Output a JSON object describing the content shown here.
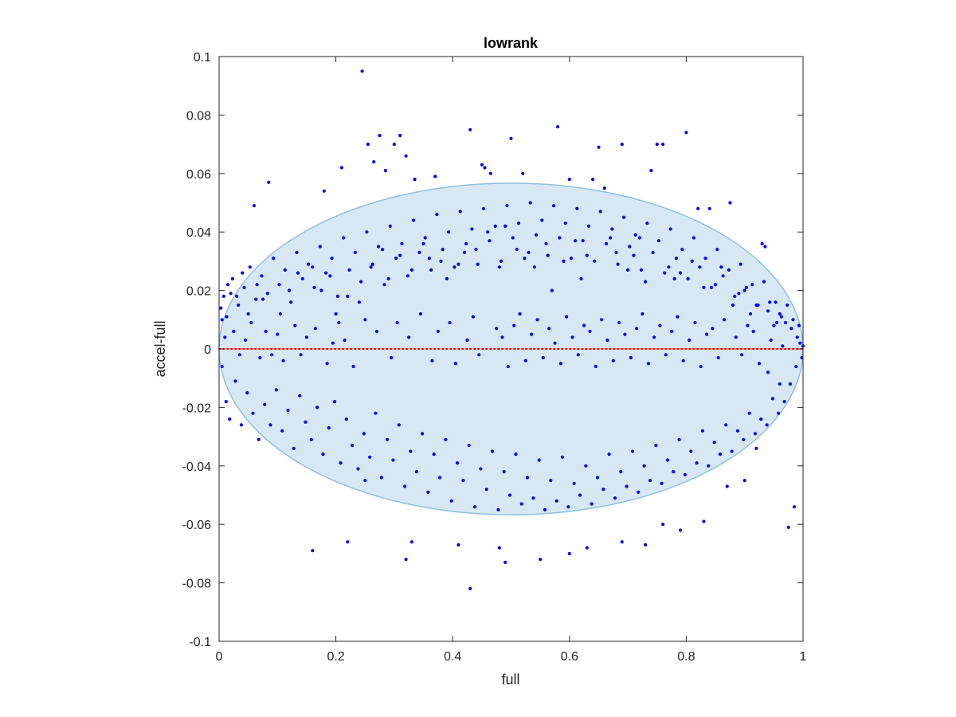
{
  "chart_data": {
    "type": "scatter",
    "title": "lowrank",
    "xlabel": "full",
    "ylabel": "accel-full",
    "xlim": [
      0,
      1
    ],
    "ylim": [
      -0.1,
      0.1
    ],
    "xticks": [
      0,
      0.2,
      0.4,
      0.6,
      0.8,
      1
    ],
    "xtick_labels": [
      "0",
      "0.2",
      "0.4",
      "0.6",
      "0.8",
      "1"
    ],
    "yticks": [
      -0.1,
      -0.08,
      -0.06,
      -0.04,
      -0.02,
      0,
      0.02,
      0.04,
      0.06,
      0.08,
      0.1
    ],
    "ytick_labels": [
      "-0.1",
      "-0.08",
      "-0.06",
      "-0.04",
      "-0.02",
      "0",
      "0.02",
      "0.04",
      "0.06",
      "0.08",
      "0.1"
    ],
    "grid": false,
    "reference_line": {
      "y": 0,
      "style": "dotted",
      "color": "#ff0000"
    },
    "ellipse": {
      "cx": 0.5,
      "cy": 0,
      "rx": 0.5,
      "ry": 0.0567,
      "fill": "#d7e8f4",
      "stroke": "#8fc0e0"
    },
    "point_color": "#0000ff",
    "series": [
      {
        "x": [
          0.245,
          0.275,
          0.31,
          0.255,
          0.3,
          0.43,
          0.5,
          0.58,
          0.65,
          0.69,
          0.75,
          0.8,
          0.76,
          0.32,
          0.21,
          0.18,
          0.085,
          0.06,
          0.265,
          0.285,
          0.37,
          0.335,
          0.45,
          0.455,
          0.465,
          0.52,
          0.6,
          0.64,
          0.66,
          0.74,
          0.82,
          0.84,
          0.875,
          0.93,
          0.935,
          0.02,
          0.015,
          0.005,
          0.03,
          0.04,
          0.05,
          0.065,
          0.075,
          0.105,
          0.12,
          0.135,
          0.16,
          0.175,
          0.19,
          0.2,
          0.22,
          0.24,
          0.26,
          0.28,
          0.29,
          0.31,
          0.33,
          0.35,
          0.36,
          0.38,
          0.39,
          0.41,
          0.42,
          0.44,
          0.46,
          0.48,
          0.49,
          0.51,
          0.53,
          0.54,
          0.56,
          0.57,
          0.59,
          0.61,
          0.62,
          0.63,
          0.67,
          0.68,
          0.7,
          0.71,
          0.72,
          0.73,
          0.77,
          0.78,
          0.79,
          0.81,
          0.83,
          0.85,
          0.86,
          0.88,
          0.89,
          0.9,
          0.91,
          0.92,
          0.94,
          0.95,
          0.96,
          0.97,
          0.98,
          0.99,
          0.995,
          1.0,
          0.01,
          0.025,
          0.035,
          0.045,
          0.055,
          0.07,
          0.08,
          0.09,
          0.1,
          0.11,
          0.13,
          0.14,
          0.15,
          0.165,
          0.185,
          0.195,
          0.205,
          0.215,
          0.23,
          0.25,
          0.27,
          0.295,
          0.305,
          0.325,
          0.345,
          0.365,
          0.375,
          0.395,
          0.405,
          0.425,
          0.435,
          0.445,
          0.475,
          0.485,
          0.495,
          0.505,
          0.515,
          0.525,
          0.535,
          0.545,
          0.555,
          0.565,
          0.575,
          0.585,
          0.595,
          0.605,
          0.615,
          0.625,
          0.635,
          0.645,
          0.655,
          0.665,
          0.675,
          0.685,
          0.695,
          0.705,
          0.715,
          0.725,
          0.735,
          0.745,
          0.755,
          0.765,
          0.775,
          0.785,
          0.795,
          0.805,
          0.815,
          0.825,
          0.835,
          0.845,
          0.855,
          0.865,
          0.885,
          0.895,
          0.905,
          0.915,
          0.925,
          0.945,
          0.955,
          0.965,
          0.975,
          0.985,
          0.25,
          0.22,
          0.16,
          0.32,
          0.33,
          0.41,
          0.43,
          0.48,
          0.49,
          0.55,
          0.6,
          0.63,
          0.69,
          0.73,
          0.76,
          0.79,
          0.83,
          0.87,
          0.9,
          0.92,
          0.94,
          0.96,
          0.005,
          0.012,
          0.018,
          0.028,
          0.038,
          0.048,
          0.058,
          0.068,
          0.078,
          0.088,
          0.098,
          0.108,
          0.118,
          0.128,
          0.138,
          0.148,
          0.158,
          0.168,
          0.178,
          0.188,
          0.198,
          0.208,
          0.218,
          0.228,
          0.238,
          0.248,
          0.258,
          0.268,
          0.278,
          0.288,
          0.298,
          0.308,
          0.318,
          0.328,
          0.338,
          0.348,
          0.358,
          0.368,
          0.378,
          0.388,
          0.398,
          0.408,
          0.418,
          0.428,
          0.438,
          0.448,
          0.458,
          0.468,
          0.478,
          0.488,
          0.498,
          0.508,
          0.518,
          0.528,
          0.538,
          0.548,
          0.558,
          0.568,
          0.578,
          0.588,
          0.598,
          0.608,
          0.618,
          0.628,
          0.638,
          0.648,
          0.658,
          0.668,
          0.678,
          0.688,
          0.698,
          0.708,
          0.718,
          0.728,
          0.738,
          0.748,
          0.758,
          0.768,
          0.778,
          0.788,
          0.798,
          0.808,
          0.818,
          0.828,
          0.838,
          0.848,
          0.858,
          0.868,
          0.878,
          0.888,
          0.898,
          0.908,
          0.918,
          0.928,
          0.938,
          0.948,
          0.958,
          0.968,
          0.978,
          0.988,
          0.998,
          0.003,
          0.008,
          0.013,
          0.023,
          0.033,
          0.043,
          0.053,
          0.063,
          0.073,
          0.083,
          0.093,
          0.103,
          0.113,
          0.123,
          0.133,
          0.143,
          0.153,
          0.163,
          0.173,
          0.183,
          0.193,
          0.203,
          0.213,
          0.223,
          0.233,
          0.243,
          0.253,
          0.263,
          0.273,
          0.283,
          0.293,
          0.303,
          0.313,
          0.323,
          0.333,
          0.343,
          0.353,
          0.363,
          0.373,
          0.383,
          0.393,
          0.403,
          0.413,
          0.423,
          0.433,
          0.443,
          0.453,
          0.463,
          0.473,
          0.483,
          0.493,
          0.503,
          0.513,
          0.523,
          0.533,
          0.543,
          0.553,
          0.563,
          0.573,
          0.583,
          0.593,
          0.603,
          0.613,
          0.623,
          0.633,
          0.643,
          0.653,
          0.663,
          0.673,
          0.683,
          0.693,
          0.703,
          0.713,
          0.723,
          0.733,
          0.743,
          0.753,
          0.763,
          0.773,
          0.783,
          0.793,
          0.803,
          0.813,
          0.823,
          0.833,
          0.843,
          0.853,
          0.863,
          0.873,
          0.883,
          0.893,
          0.903,
          0.913,
          0.923,
          0.933,
          0.943,
          0.953,
          0.963,
          0.973,
          0.983,
          0.993
        ],
        "y": [
          0.095,
          0.073,
          0.073,
          0.07,
          0.07,
          0.075,
          0.072,
          0.076,
          0.069,
          0.07,
          0.07,
          0.074,
          0.07,
          0.066,
          0.062,
          0.054,
          0.057,
          0.049,
          0.064,
          0.061,
          0.059,
          0.058,
          0.063,
          0.062,
          0.06,
          0.06,
          0.058,
          0.058,
          0.055,
          0.061,
          0.048,
          0.048,
          0.05,
          0.036,
          0.035,
          0.019,
          0.022,
          0.01,
          0.018,
          0.026,
          0.012,
          0.022,
          0.017,
          0.012,
          0.02,
          0.026,
          0.028,
          0.02,
          0.025,
          0.012,
          0.018,
          0.016,
          0.028,
          0.034,
          0.024,
          0.032,
          0.027,
          0.036,
          0.031,
          0.03,
          0.024,
          0.029,
          0.033,
          0.034,
          0.04,
          0.028,
          0.042,
          0.034,
          0.033,
          0.028,
          0.036,
          0.02,
          0.03,
          0.037,
          0.024,
          0.032,
          0.038,
          0.033,
          0.027,
          0.032,
          0.038,
          0.023,
          0.028,
          0.024,
          0.026,
          0.03,
          0.021,
          0.022,
          0.028,
          0.015,
          0.019,
          0.02,
          0.012,
          0.015,
          0.013,
          0.008,
          0.012,
          0.009,
          0.007,
          0.004,
          0.002,
          0.001,
          0.004,
          0.006,
          -0.002,
          0.003,
          0.009,
          -0.003,
          0.006,
          -0.002,
          0.005,
          -0.004,
          0.008,
          -0.002,
          0.004,
          0.007,
          -0.005,
          0.002,
          0.009,
          0.003,
          -0.006,
          0.01,
          0.006,
          -0.003,
          0.009,
          0.004,
          0.012,
          -0.004,
          0.006,
          0.009,
          -0.005,
          0.003,
          0.011,
          -0.002,
          0.007,
          0.004,
          -0.006,
          0.008,
          0.012,
          -0.004,
          0.005,
          0.01,
          -0.003,
          0.007,
          0.002,
          -0.005,
          0.011,
          0.004,
          -0.002,
          0.008,
          0.006,
          -0.006,
          0.01,
          0.003,
          -0.004,
          0.009,
          0.005,
          -0.003,
          0.007,
          0.012,
          -0.005,
          0.004,
          0.008,
          -0.002,
          0.006,
          0.011,
          -0.004,
          0.003,
          0.009,
          -0.006,
          0.005,
          0.007,
          -0.003,
          0.01,
          0.004,
          -0.002,
          0.008,
          0.006,
          -0.005,
          0.003,
          0.009,
          0.001,
          -0.061,
          -0.054,
          -0.045,
          -0.066,
          -0.069,
          -0.072,
          -0.066,
          -0.067,
          -0.082,
          -0.068,
          -0.073,
          -0.072,
          -0.07,
          -0.068,
          -0.066,
          -0.067,
          -0.06,
          -0.062,
          -0.059,
          -0.047,
          -0.045,
          -0.034,
          -0.008,
          -0.012,
          -0.006,
          -0.018,
          -0.024,
          -0.011,
          -0.026,
          -0.015,
          -0.022,
          -0.031,
          -0.019,
          -0.026,
          -0.014,
          -0.028,
          -0.021,
          -0.034,
          -0.016,
          -0.025,
          -0.031,
          -0.02,
          -0.036,
          -0.027,
          -0.018,
          -0.039,
          -0.024,
          -0.033,
          -0.041,
          -0.029,
          -0.037,
          -0.022,
          -0.044,
          -0.031,
          -0.038,
          -0.026,
          -0.047,
          -0.035,
          -0.042,
          -0.029,
          -0.049,
          -0.036,
          -0.044,
          -0.031,
          -0.052,
          -0.039,
          -0.045,
          -0.033,
          -0.054,
          -0.041,
          -0.048,
          -0.035,
          -0.055,
          -0.042,
          -0.05,
          -0.036,
          -0.053,
          -0.044,
          -0.051,
          -0.038,
          -0.055,
          -0.045,
          -0.052,
          -0.037,
          -0.054,
          -0.046,
          -0.05,
          -0.04,
          -0.053,
          -0.044,
          -0.048,
          -0.036,
          -0.051,
          -0.042,
          -0.047,
          -0.035,
          -0.049,
          -0.04,
          -0.045,
          -0.033,
          -0.046,
          -0.038,
          -0.042,
          -0.031,
          -0.043,
          -0.035,
          -0.039,
          -0.028,
          -0.04,
          -0.032,
          -0.036,
          -0.026,
          -0.035,
          -0.028,
          -0.031,
          -0.022,
          -0.029,
          -0.024,
          -0.026,
          -0.017,
          -0.022,
          -0.018,
          -0.012,
          -0.006,
          -0.003,
          0.014,
          0.018,
          0.011,
          0.024,
          0.015,
          0.021,
          0.028,
          0.017,
          0.025,
          0.019,
          0.031,
          0.022,
          0.027,
          0.016,
          0.033,
          0.024,
          0.029,
          0.021,
          0.035,
          0.026,
          0.031,
          0.018,
          0.038,
          0.027,
          0.033,
          0.023,
          0.04,
          0.029,
          0.035,
          0.022,
          0.042,
          0.031,
          0.036,
          0.025,
          0.044,
          0.033,
          0.038,
          0.027,
          0.046,
          0.034,
          0.04,
          0.028,
          0.047,
          0.036,
          0.041,
          0.029,
          0.048,
          0.037,
          0.042,
          0.03,
          0.049,
          0.038,
          0.043,
          0.031,
          0.05,
          0.039,
          0.044,
          0.032,
          0.049,
          0.038,
          0.043,
          0.031,
          0.048,
          0.037,
          0.042,
          0.03,
          0.047,
          0.036,
          0.041,
          0.029,
          0.045,
          0.035,
          0.039,
          0.027,
          0.043,
          0.033,
          0.037,
          0.026,
          0.041,
          0.031,
          0.034,
          0.024,
          0.038,
          0.028,
          0.031,
          0.021,
          0.034,
          0.025,
          0.027,
          0.018,
          0.029,
          0.021,
          0.022,
          0.015,
          0.023,
          0.016,
          0.016,
          0.011,
          0.015,
          0.01,
          0.008
        ]
      }
    ]
  }
}
